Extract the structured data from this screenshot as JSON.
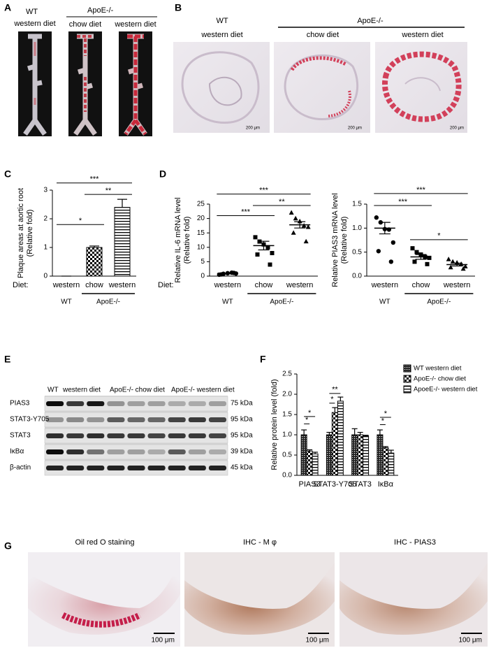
{
  "panels": {
    "A": {
      "label": "A",
      "groups": [
        "WT",
        "ApoE-/-"
      ],
      "diets": [
        "western diet",
        "chow diet",
        "western diet"
      ]
    },
    "B": {
      "label": "B",
      "groups": [
        "WT",
        "ApoE-/-"
      ],
      "diets": [
        "western diet",
        "chow diet",
        "western diet"
      ],
      "scale_bars": [
        "200 μm",
        "200 μm",
        "200 μm"
      ]
    },
    "E": {
      "label": "E",
      "lanes": [
        "WT",
        "western diet",
        "ApoE-/- chow diet",
        "ApoE-/- western diet"
      ],
      "proteins": [
        "PIAS3",
        "STAT3-Y705",
        "STAT3",
        "IκBα",
        "β-actin"
      ],
      "sizes": [
        "75 kDa",
        "95 kDa",
        "95 kDa",
        "39 kDa",
        "45 kDa"
      ]
    },
    "G": {
      "label": "G",
      "titles": [
        "Oil red O staining",
        "IHC - M φ",
        "IHC - PIAS3"
      ],
      "scale_bars": [
        "100 μm",
        "100 μm",
        "100 μm"
      ]
    }
  },
  "chart_data": [
    {
      "panel": "C",
      "type": "bar",
      "y_label": [
        "Plaque areas at aortic root",
        "(Relative fold)"
      ],
      "x_prefix": "Diet:",
      "categories": [
        "western",
        "chow",
        "western"
      ],
      "groups": [
        "WT",
        "ApoE-/-"
      ],
      "values": [
        0,
        1.0,
        2.4
      ],
      "errors": [
        0,
        0.05,
        0.28
      ],
      "patterns": [
        "none",
        "checker",
        "stripes"
      ],
      "color": "#000000",
      "ylim": [
        0,
        3
      ],
      "yticks": [
        0,
        1,
        2,
        3
      ],
      "significance": [
        "*",
        "**",
        "***"
      ]
    },
    {
      "panel": "D",
      "type": "dot",
      "y_label": [
        "Relative IL-6 mRNA level",
        "(Relative fold)"
      ],
      "x_prefix": "Diet:",
      "categories": [
        "western",
        "chow",
        "western"
      ],
      "groups": [
        "WT",
        "ApoE-/-"
      ],
      "points": [
        [
          0.5,
          0.8,
          1.0,
          1.2,
          0.9,
          0.6,
          1.1
        ],
        [
          13.5,
          12,
          11,
          10,
          8,
          7.5,
          4
        ],
        [
          22,
          20,
          19,
          17.5,
          17,
          15,
          12
        ]
      ],
      "means": [
        0.9,
        10.6,
        17.8
      ],
      "errors": [
        0.1,
        1.5,
        1.1
      ],
      "markers": [
        "circle",
        "square",
        "triangle"
      ],
      "color": "#000000",
      "ylim": [
        0,
        25
      ],
      "yticks": [
        0,
        5,
        10,
        15,
        20,
        25
      ],
      "significance": [
        "***",
        "**",
        "***"
      ]
    },
    {
      "type": "dot",
      "y_label": [
        "Relative PIAS3 mRNA level",
        "(Relative fold)"
      ],
      "categories": [
        "western",
        "chow",
        "western"
      ],
      "groups": [
        "WT",
        "ApoE-/-"
      ],
      "points": [
        [
          1.22,
          1.12,
          0.98,
          0.97,
          0.7,
          0.52,
          0.3
        ],
        [
          0.58,
          0.5,
          0.45,
          0.4,
          0.38,
          0.3,
          0.25
        ],
        [
          0.35,
          0.3,
          0.28,
          0.25,
          0.2,
          0.18,
          0.15
        ]
      ],
      "means": [
        1.0,
        0.4,
        0.24
      ],
      "errors": [
        0.12,
        0.05,
        0.03
      ],
      "markers": [
        "circle",
        "square",
        "triangle"
      ],
      "color": "#000000",
      "ylim": [
        0,
        1.5
      ],
      "yticks": [
        {
          "value": 0,
          "label": "0.0"
        },
        0.5,
        {
          "value": 1,
          "label": "1.0"
        },
        1.5
      ],
      "significance": [
        "***",
        "*",
        "***"
      ]
    },
    {
      "panel": "F",
      "type": "grouped_bar",
      "y_label": [
        "Relative protein level (fold)"
      ],
      "categories": [
        "PIAS3",
        "STAT3-Y705",
        "STAT3",
        "IκBα"
      ],
      "series": [
        {
          "name": "WT western diet",
          "pattern": "crosshatch",
          "values": [
            1.0,
            1.0,
            1.0,
            1.0
          ],
          "errors": [
            0.12,
            0.06,
            0.15,
            0.12
          ]
        },
        {
          "name": "ApoE-/- chow diet",
          "pattern": "checker",
          "values": [
            0.6,
            1.55,
            1.0,
            0.68
          ],
          "errors": [
            0.03,
            0.12,
            0.06,
            0.03
          ]
        },
        {
          "name": "ApoeE-/- western diet",
          "pattern": "stripes",
          "values": [
            0.53,
            1.83,
            0.97,
            0.55
          ],
          "errors": [
            0.04,
            0.1,
            0.02,
            0.07
          ]
        }
      ],
      "color": "#000000",
      "ylim": [
        0,
        2.5
      ],
      "yticks": [
        {
          "value": 0,
          "label": "0.0"
        },
        0.5,
        {
          "value": 1,
          "label": "1.0"
        },
        1.5,
        {
          "value": 2,
          "label": "2.0"
        },
        2.5
      ],
      "legend": "right",
      "significance": [
        "*",
        "*",
        "*",
        "**",
        "*",
        "*"
      ]
    }
  ]
}
